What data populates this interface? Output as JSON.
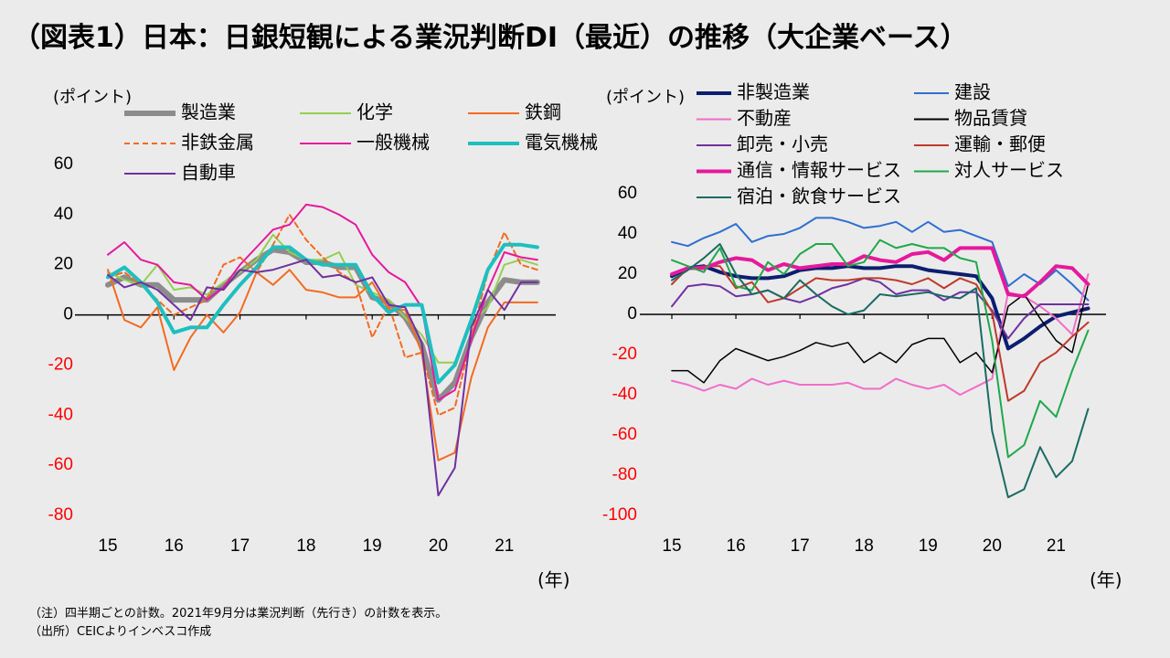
{
  "page": {
    "title": "（図表1）日本：日銀短観による業況判断DI（最近）の推移（大企業ベース）",
    "note1": "（注）四半期ごとの計数。2021年9月分は業況判断（先行き）の計数を表示。",
    "note2": "（出所）CEICよりインベスコ作成"
  },
  "colors": {
    "negative_tick": "#ff0000",
    "positive_tick": "#000000"
  },
  "chart_data": [
    {
      "type": "line",
      "unit_label": "(ポイント)",
      "x_unit_label": "(年)",
      "x": [
        15,
        15.25,
        15.5,
        15.75,
        16,
        16.25,
        16.5,
        16.75,
        17,
        17.25,
        17.5,
        17.75,
        18,
        18.25,
        18.5,
        18.75,
        19,
        19.25,
        19.5,
        19.75,
        20,
        20.25,
        20.5,
        20.75,
        21,
        21.25,
        21.5
      ],
      "xticks": [
        {
          "v": 15,
          "label": "15"
        },
        {
          "v": 16,
          "label": "16"
        },
        {
          "v": 17,
          "label": "17"
        },
        {
          "v": 18,
          "label": "18"
        },
        {
          "v": 19,
          "label": "19"
        },
        {
          "v": 20,
          "label": "20"
        },
        {
          "v": 21,
          "label": "21"
        }
      ],
      "yticks": [
        60,
        40,
        20,
        0,
        -20,
        -40,
        -60,
        -80
      ],
      "ytick_labels": [
        "60",
        "40",
        "20",
        "0",
        "-20",
        "-40",
        "-60",
        "-80"
      ],
      "ylim": [
        -80,
        60
      ],
      "xlim": [
        15,
        21.75
      ],
      "series": [
        {
          "name": "製造業",
          "color": "#8c8c8c",
          "width": 6,
          "dash": "",
          "values": [
            12,
            15,
            12,
            12,
            6,
            6,
            6,
            12,
            17,
            22,
            26,
            25,
            21,
            21,
            19,
            19,
            7,
            5,
            -1,
            -12,
            -34,
            -27,
            -9,
            5,
            14,
            13,
            13
          ]
        },
        {
          "name": "化学",
          "color": "#92d050",
          "width": 2,
          "dash": "",
          "values": [
            17,
            14,
            12,
            20,
            10,
            11,
            8,
            13,
            17,
            22,
            32,
            25,
            22,
            22,
            25,
            12,
            9,
            6,
            -1,
            -8,
            -19,
            -19,
            -3,
            3,
            20,
            22,
            20
          ]
        },
        {
          "name": "鉄鋼",
          "color": "#f26b21",
          "width": 2,
          "dash": "",
          "values": [
            18,
            -2,
            -5,
            3,
            -22,
            -9,
            0,
            -7,
            1,
            17,
            12,
            18,
            10,
            9,
            7,
            7,
            13,
            2,
            2,
            -15,
            -58,
            -55,
            -25,
            -5,
            5,
            5,
            5
          ]
        },
        {
          "name": "非鉄金属",
          "color": "#f26b21",
          "width": 2,
          "dash": "6,4",
          "values": [
            15,
            17,
            12,
            6,
            0,
            3,
            6,
            20,
            23,
            17,
            28,
            40,
            30,
            23,
            17,
            13,
            -9,
            4,
            -17,
            -15,
            -40,
            -37,
            -9,
            17,
            33,
            20,
            18
          ]
        },
        {
          "name": "一般機械",
          "color": "#e5199c",
          "width": 2,
          "dash": "",
          "values": [
            24,
            29,
            22,
            20,
            13,
            12,
            6,
            11,
            20,
            27,
            34,
            36,
            44,
            43,
            40,
            36,
            24,
            17,
            13,
            3,
            -34,
            -30,
            -10,
            10,
            25,
            23,
            22
          ]
        },
        {
          "name": "電気機械",
          "color": "#1ebfbf",
          "width": 4,
          "dash": "",
          "values": [
            15,
            19,
            13,
            5,
            -7,
            -5,
            -5,
            4,
            12,
            19,
            27,
            27,
            22,
            20,
            20,
            20,
            8,
            1,
            4,
            4,
            -27,
            -20,
            -2,
            18,
            28,
            28,
            27
          ]
        },
        {
          "name": "自動車",
          "color": "#7030a0",
          "width": 2,
          "dash": "",
          "values": [
            16,
            11,
            13,
            10,
            4,
            -2,
            11,
            10,
            18,
            17,
            18,
            20,
            22,
            15,
            16,
            13,
            15,
            4,
            3,
            -11,
            -72,
            -61,
            -5,
            10,
            2,
            13,
            13
          ]
        }
      ]
    },
    {
      "type": "line",
      "unit_label": "(ポイント)",
      "x_unit_label": "(年)",
      "x": [
        15,
        15.25,
        15.5,
        15.75,
        16,
        16.25,
        16.5,
        16.75,
        17,
        17.25,
        17.5,
        17.75,
        18,
        18.25,
        18.5,
        18.75,
        19,
        19.25,
        19.5,
        19.75,
        20,
        20.25,
        20.5,
        20.75,
        21,
        21.25,
        21.5
      ],
      "xticks": [
        {
          "v": 15,
          "label": "15"
        },
        {
          "v": 16,
          "label": "16"
        },
        {
          "v": 17,
          "label": "17"
        },
        {
          "v": 18,
          "label": "18"
        },
        {
          "v": 19,
          "label": "19"
        },
        {
          "v": 20,
          "label": "20"
        },
        {
          "v": 21,
          "label": "21"
        }
      ],
      "yticks": [
        60,
        40,
        20,
        0,
        -20,
        -40,
        -60,
        -80,
        -100
      ],
      "ytick_labels": [
        "60",
        "40",
        "20",
        "0",
        "-20",
        "-40",
        "-60",
        "-80",
        "-100"
      ],
      "ylim": [
        -100,
        60
      ],
      "xlim": [
        15,
        21.75
      ],
      "series": [
        {
          "name": "非製造業",
          "color": "#0c1e6e",
          "width": 4,
          "dash": "",
          "values": [
            19,
            23,
            24,
            21,
            19,
            18,
            18,
            19,
            22,
            23,
            23,
            24,
            23,
            23,
            24,
            24,
            22,
            21,
            20,
            19,
            8,
            -17,
            -12,
            -6,
            -1,
            1,
            3
          ]
        },
        {
          "name": "建設",
          "color": "#2f6fd0",
          "width": 2,
          "dash": "",
          "values": [
            36,
            34,
            38,
            41,
            45,
            36,
            39,
            40,
            43,
            48,
            48,
            46,
            43,
            44,
            46,
            41,
            46,
            41,
            42,
            39,
            36,
            14,
            20,
            15,
            22,
            15,
            7
          ]
        },
        {
          "name": "不動産",
          "color": "#f06ec8",
          "width": 2,
          "dash": "",
          "values": [
            -33,
            -35,
            -38,
            -35,
            -37,
            -32,
            -35,
            -33,
            -35,
            -35,
            -35,
            -34,
            -37,
            -37,
            -32,
            -35,
            -37,
            -35,
            -40,
            -36,
            -32,
            11,
            9,
            4,
            -2,
            -10,
            20
          ]
        },
        {
          "name": "物品賃貸",
          "color": "#000000",
          "width": 1.5,
          "dash": "",
          "values": [
            -28,
            -28,
            -34,
            -23,
            -17,
            -20,
            -23,
            -21,
            -18,
            -14,
            -16,
            -14,
            -24,
            -19,
            -24,
            -15,
            -12,
            -12,
            -24,
            -19,
            -29,
            4,
            10,
            -2,
            -13,
            -19,
            15
          ]
        },
        {
          "name": "卸売・小売",
          "color": "#7030a0",
          "width": 2,
          "dash": "",
          "values": [
            4,
            14,
            15,
            14,
            9,
            10,
            12,
            8,
            6,
            9,
            13,
            15,
            18,
            16,
            10,
            12,
            12,
            7,
            11,
            11,
            2,
            -12,
            -2,
            5,
            5,
            5,
            5
          ]
        },
        {
          "name": "運輸・郵便",
          "color": "#c0392b",
          "width": 2,
          "dash": "",
          "values": [
            15,
            23,
            24,
            24,
            13,
            16,
            6,
            8,
            13,
            18,
            17,
            17,
            18,
            18,
            17,
            15,
            18,
            13,
            18,
            15,
            1,
            -43,
            -38,
            -24,
            -19,
            -11,
            -4
          ]
        },
        {
          "name": "通信・情報サービス",
          "color": "#e5199c",
          "width": 4,
          "dash": "",
          "values": [
            20,
            23,
            23,
            26,
            28,
            27,
            22,
            25,
            23,
            24,
            25,
            25,
            29,
            27,
            26,
            30,
            31,
            27,
            33,
            33,
            33,
            10,
            9,
            16,
            24,
            23,
            15
          ]
        },
        {
          "name": "対人サービス",
          "color": "#1fa84a",
          "width": 2,
          "dash": "",
          "values": [
            27,
            24,
            21,
            33,
            14,
            12,
            26,
            20,
            30,
            35,
            35,
            24,
            26,
            37,
            33,
            35,
            33,
            33,
            28,
            26,
            -13,
            -71,
            -65,
            -43,
            -51,
            -28,
            -8
          ]
        },
        {
          "name": "宿泊・飲食サービス",
          "color": "#1a6b63",
          "width": 2,
          "dash": "",
          "values": [
            17,
            22,
            28,
            35,
            20,
            10,
            12,
            8,
            17,
            10,
            4,
            0,
            2,
            10,
            9,
            10,
            11,
            9,
            8,
            13,
            -58,
            -91,
            -87,
            -66,
            -81,
            -73,
            -47
          ]
        }
      ]
    }
  ]
}
